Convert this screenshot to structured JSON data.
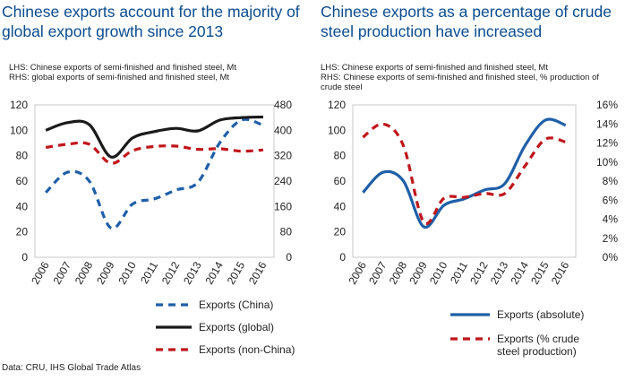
{
  "source": "Data: CRU, IHS Global Trade Atlas",
  "chart_data": [
    {
      "type": "line",
      "title": "Chinese exports account for the majority of global export growth since 2013",
      "notes": [
        "LHS: Chinese exports of semi-finished and finished steel, Mt",
        "RHS: global exports of semi-finished and finished steel, Mt"
      ],
      "categories": [
        "2006",
        "2007",
        "2008",
        "2009",
        "2010",
        "2011",
        "2012",
        "2013",
        "2014",
        "2015",
        "2016"
      ],
      "y_left": {
        "min": 0,
        "max": 120,
        "ticks": [
          "0",
          "20",
          "40",
          "60",
          "80",
          "100",
          "120"
        ]
      },
      "y_right": {
        "min": 0,
        "max": 480,
        "ticks": [
          "0",
          "80",
          "160",
          "240",
          "320",
          "400",
          "480"
        ]
      },
      "grid": false,
      "legend_position": "bottom-right",
      "series": [
        {
          "name": "Exports (China)",
          "axis": "left",
          "style": "dashed",
          "color": "#1f5fa8",
          "values": [
            51,
            67,
            60,
            23,
            42,
            46,
            53,
            59,
            90,
            108,
            104
          ]
        },
        {
          "name": "Exports (global)",
          "axis": "right",
          "style": "solid",
          "color": "#1a1a1a",
          "values": [
            400,
            424,
            418,
            316,
            376,
            396,
            406,
            398,
            432,
            440,
            442
          ]
        },
        {
          "name": "Exports (non-China)",
          "axis": "right",
          "style": "dashed",
          "color": "#c0161b",
          "values": [
            346,
            356,
            356,
            296,
            336,
            349,
            350,
            340,
            342,
            334,
            338
          ]
        }
      ]
    },
    {
      "type": "line",
      "title": "Chinese exports as a percentage of crude steel production have increased",
      "notes": [
        "LHS: Chinese exports of semi-finished and finished steel, Mt",
        "RHS: Chinese exports of semi-finished and finished steel, % production of crude steel"
      ],
      "categories": [
        "2006",
        "2007",
        "2008",
        "2009",
        "2010",
        "2011",
        "2012",
        "2013",
        "2014",
        "2015",
        "2016"
      ],
      "y_left": {
        "min": 0,
        "max": 120,
        "ticks": [
          "0",
          "20",
          "40",
          "60",
          "80",
          "100",
          "120"
        ]
      },
      "y_right": {
        "min": 0,
        "max": 16,
        "ticks": [
          "0%",
          "2%",
          "4%",
          "6%",
          "8%",
          "10%",
          "12%",
          "14%",
          "16%"
        ]
      },
      "grid": false,
      "legend_position": "bottom-right",
      "series": [
        {
          "name": "Exports (absolute)",
          "axis": "left",
          "style": "solid",
          "color": "#1f5fa8",
          "values": [
            51,
            67,
            60,
            24,
            41,
            46,
            53,
            58,
            88,
            108,
            104
          ]
        },
        {
          "name": "Exports (% crude steel production)",
          "axis": "right",
          "style": "dashed",
          "color": "#c0161b",
          "values": [
            12.6,
            14.0,
            11.7,
            3.7,
            6.2,
            6.3,
            6.7,
            6.7,
            9.6,
            12.4,
            12.1
          ]
        }
      ]
    }
  ]
}
